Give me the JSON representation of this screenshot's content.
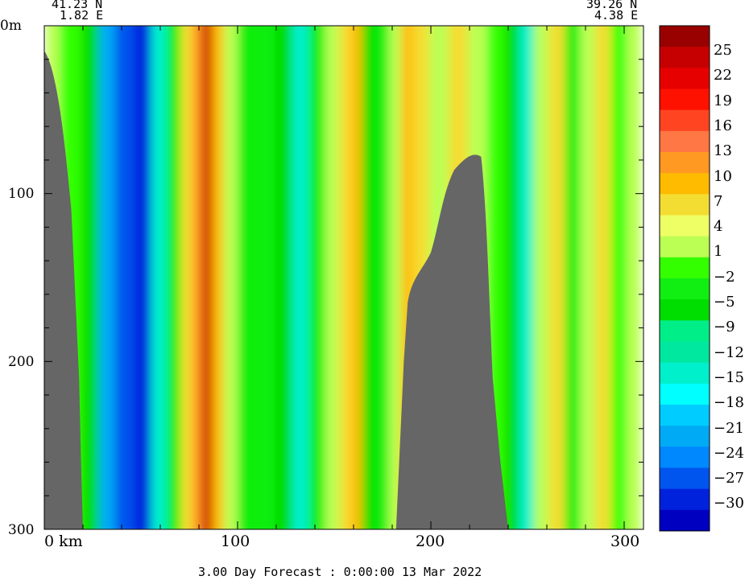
{
  "header": {
    "left_lat": "41.23 N",
    "left_lon": "1.82 E",
    "right_lat": "39.26 N",
    "right_lon": "4.38 E"
  },
  "footer": {
    "forecast": "3.00 Day Forecast :  0:00:00  13 Mar 2022"
  },
  "colors": {
    "land": "#666666",
    "scale": [
      "#0000c0",
      "#0022dd",
      "#0055ee",
      "#0088ff",
      "#00aaf5",
      "#00ccff",
      "#00ffff",
      "#00f0cc",
      "#00e8a0",
      "#00ee88",
      "#00dd00",
      "#11ee11",
      "#33ff00",
      "#bbff55",
      "#eeff66",
      "#f4dd33",
      "#ffbb00",
      "#ff9922",
      "#ff7744",
      "#ff4422",
      "#ff1100",
      "#e60000",
      "#c60000",
      "#990000"
    ]
  },
  "chart_data": {
    "type": "heatmap",
    "title": "",
    "xlabel": "km",
    "ylabel": "m",
    "xlim": [
      0,
      310
    ],
    "ylim": [
      300,
      0
    ],
    "x_ticks": [
      "0 km",
      "100",
      "200",
      "300"
    ],
    "x_tick_values": [
      0,
      100,
      200,
      300
    ],
    "y_ticks": [
      "0m",
      "100",
      "200",
      "300"
    ],
    "y_tick_values": [
      0,
      100,
      200,
      300
    ],
    "colorbar": {
      "labels": [
        "25",
        "22",
        "19",
        "16",
        "13",
        "10",
        "7",
        "4",
        "1",
        "−2",
        "−5",
        "−9",
        "−12",
        "−15",
        "−18",
        "−21",
        "−24",
        "−27",
        "−30"
      ],
      "values": [
        25,
        22,
        19,
        16,
        13,
        10,
        7,
        4,
        1,
        -2,
        -5,
        -9,
        -12,
        -15,
        -18,
        -21,
        -24,
        -27,
        -30
      ]
    },
    "columns": [
      {
        "km": 3,
        "value": 2
      },
      {
        "km": 15,
        "value": -1
      },
      {
        "km": 25,
        "value": -6
      },
      {
        "km": 33,
        "value": -22
      },
      {
        "km": 42,
        "value": -26
      },
      {
        "km": 52,
        "value": -29
      },
      {
        "km": 60,
        "value": -14
      },
      {
        "km": 68,
        "value": -4
      },
      {
        "km": 75,
        "value": 6
      },
      {
        "km": 80,
        "value": 12
      },
      {
        "km": 85,
        "value": 22
      },
      {
        "km": 90,
        "value": 8
      },
      {
        "km": 97,
        "value": 2
      },
      {
        "km": 105,
        "value": -3
      },
      {
        "km": 115,
        "value": -5
      },
      {
        "km": 125,
        "value": -8
      },
      {
        "km": 133,
        "value": -13
      },
      {
        "km": 142,
        "value": -4
      },
      {
        "km": 150,
        "value": 1
      },
      {
        "km": 157,
        "value": 5
      },
      {
        "km": 162,
        "value": 9
      },
      {
        "km": 168,
        "value": -9
      },
      {
        "km": 175,
        "value": -3
      },
      {
        "km": 183,
        "value": 3
      },
      {
        "km": 188,
        "value": 9
      },
      {
        "km": 195,
        "value": 4
      },
      {
        "km": 205,
        "value": 1
      },
      {
        "km": 215,
        "value": 5
      },
      {
        "km": 225,
        "value": 3
      },
      {
        "km": 235,
        "value": -2
      },
      {
        "km": 243,
        "value": -6
      },
      {
        "km": 250,
        "value": -13
      },
      {
        "km": 258,
        "value": 1
      },
      {
        "km": 266,
        "value": 4
      },
      {
        "km": 274,
        "value": -3
      },
      {
        "km": 282,
        "value": 2
      },
      {
        "km": 290,
        "value": 5
      },
      {
        "km": 298,
        "value": -2
      },
      {
        "km": 306,
        "value": 1
      }
    ],
    "land_masks": [
      {
        "km": [
          0,
          20
        ],
        "shelf_depth_m": [
          15,
          300
        ]
      },
      {
        "km": [
          182,
          240
        ],
        "top_depth_m": 75
      }
    ]
  }
}
